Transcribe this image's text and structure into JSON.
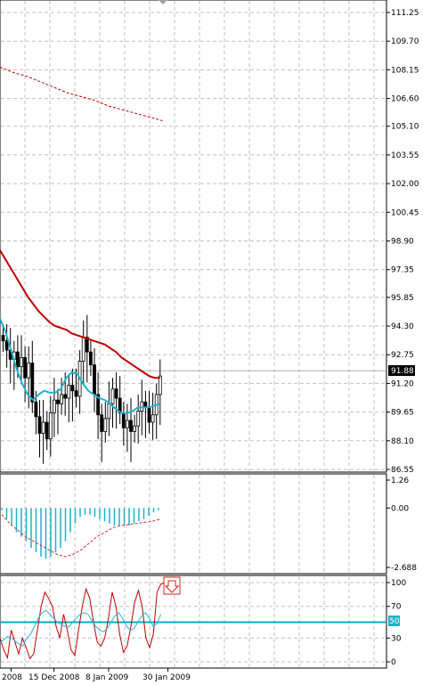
{
  "colors": {
    "background": "#ffffff",
    "grid": "#c0c0c0",
    "candles": "#000000",
    "ma_slow": "#c00000",
    "ma_fast": "#1fb0d0",
    "histogram": "#20b0c8",
    "signal_dashed": "#d03030",
    "stochastic_main": "#c00000",
    "stochastic_signal": "#30b0e0",
    "level_line": "#00b0c8",
    "arrow": "#d02020"
  },
  "price_panel": {
    "y_ticks": [
      "111.25",
      "109.70",
      "108.15",
      "106.60",
      "105.10",
      "103.55",
      "102.00",
      "100.45",
      "98.90",
      "97.35",
      "95.85",
      "94.30",
      "92.75",
      "91.20",
      "89.65",
      "88.10",
      "86.55"
    ],
    "current_price": "91.88"
  },
  "macd_panel": {
    "y_ticks": [
      "1.26",
      "0.00",
      "-2.688"
    ]
  },
  "stoch_panel": {
    "y_ticks": [
      "100",
      "70",
      "50",
      "30",
      "0"
    ],
    "level_label": "50",
    "arrow_icon": "down-arrow-icon"
  },
  "x_axis": {
    "labels": [
      "2008",
      "15 Dec 2008",
      "8 Jan 2009",
      "30 Jan 2009"
    ]
  },
  "chart_data": [
    {
      "type": "line",
      "panel": "price",
      "ylim": [
        86.55,
        111.25
      ],
      "candles_close": [
        93.5,
        93.0,
        92.5,
        92.9,
        92.1,
        92.6,
        91.5,
        92.3,
        90.2,
        89.4,
        88.5,
        89.1,
        88.2,
        89.6,
        90.3,
        90.1,
        90.6,
        90.4,
        91.1,
        90.8,
        90.5,
        92.4,
        93.7,
        92.9,
        92.2,
        90.6,
        89.5,
        88.6,
        89.3,
        90.1,
        90.9,
        90.4,
        89.6,
        88.8,
        89.2,
        88.6,
        88.9,
        89.7,
        90.2,
        89.9,
        89.1,
        89.5,
        90.6,
        91.6
      ],
      "series": [
        {
          "values": [
            98.4,
            97.9,
            97.4,
            96.9,
            96.4,
            95.9,
            95.5,
            95.1,
            94.8,
            94.5,
            94.3,
            94.2,
            94.1,
            93.9,
            93.8,
            93.7,
            93.6,
            93.5,
            93.4,
            93.3,
            93.1,
            92.9,
            92.6,
            92.4,
            92.2,
            92.0,
            91.8,
            91.6,
            91.5,
            91.5
          ]
        },
        {
          "values": [
            94.7,
            94.0,
            93.0,
            92.0,
            91.2,
            90.6,
            90.3,
            90.6,
            90.8,
            90.7,
            90.7,
            90.9,
            91.5,
            91.8,
            91.7,
            91.2,
            90.8,
            90.6,
            90.4,
            90.3,
            90.1,
            89.8,
            89.6,
            89.6,
            89.7,
            89.9,
            89.9,
            89.9,
            90.0,
            90.1
          ]
        },
        {
          "values": [
            108.3,
            108.0,
            107.8,
            107.5,
            107.2,
            106.9,
            106.7,
            106.5,
            106.2,
            106.0,
            105.8,
            105.6,
            105.4
          ]
        }
      ]
    },
    {
      "type": "bar",
      "panel": "macd",
      "ylim": [
        -2.688,
        1.26
      ],
      "values": [
        -0.1,
        -0.5,
        -0.8,
        -1.1,
        -1.3,
        -1.5,
        -1.8,
        -2.0,
        -2.2,
        -2.3,
        -2.2,
        -2.0,
        -1.8,
        -1.5,
        -1.1,
        -0.7,
        -0.4,
        -0.3,
        -0.3,
        -0.4,
        -0.5,
        -0.6,
        -0.7,
        -0.8,
        -0.8,
        -0.8,
        -0.8,
        -0.7,
        -0.6,
        -0.5,
        -0.35,
        -0.2,
        -0.1
      ],
      "series": [
        {
          "values": [
            -0.3,
            -0.7,
            -1.0,
            -1.3,
            -1.5,
            -1.7,
            -1.9,
            -2.1,
            -2.2,
            -2.1,
            -1.9,
            -1.6,
            -1.3,
            -1.1,
            -0.9,
            -0.8,
            -0.75,
            -0.7,
            -0.65,
            -0.6,
            -0.5
          ]
        }
      ]
    },
    {
      "type": "line",
      "panel": "stochastic",
      "ylim": [
        0,
        100
      ],
      "series": [
        {
          "values": [
            30,
            15,
            5,
            40,
            25,
            10,
            30,
            18,
            4,
            10,
            40,
            70,
            88,
            80,
            70,
            45,
            30,
            60,
            40,
            15,
            8,
            40,
            70,
            92,
            80,
            50,
            25,
            20,
            30,
            55,
            88,
            70,
            35,
            12,
            20,
            45,
            75,
            90,
            70,
            30,
            18,
            35,
            88,
            98,
            100
          ]
        },
        {
          "values": [
            25,
            28,
            32,
            30,
            26,
            22,
            20,
            30,
            35,
            45,
            55,
            62,
            65,
            60,
            55,
            50,
            47,
            45,
            44,
            50,
            56,
            60,
            62,
            60,
            52,
            45,
            40,
            38,
            42,
            50,
            58,
            62,
            55,
            45,
            40,
            42,
            50,
            58,
            62,
            55,
            45,
            48,
            60
          ]
        }
      ],
      "levels": [
        50
      ]
    }
  ]
}
